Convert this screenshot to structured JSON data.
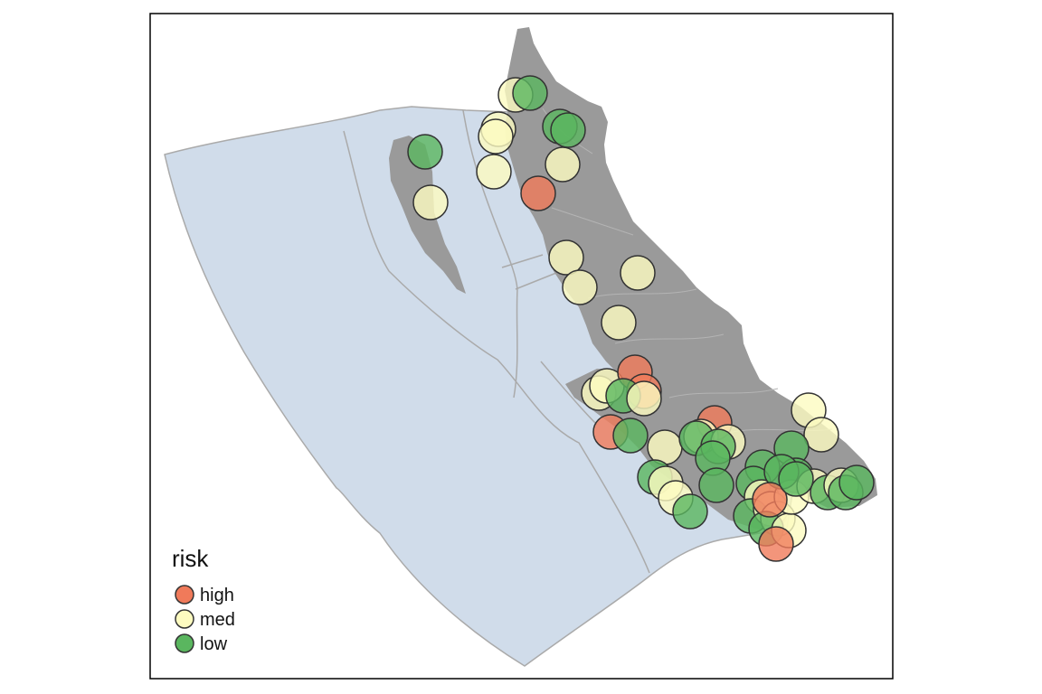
{
  "legend": {
    "title": "risk",
    "items": [
      {
        "label": "high",
        "color": "#f07a5a"
      },
      {
        "label": "med",
        "color": "#fdfbc0"
      },
      {
        "label": "low",
        "color": "#5ab65f"
      }
    ]
  },
  "colors": {
    "ocean": "#d0dcea",
    "land": "#9a9a9a",
    "boundary": "#aaaaaa",
    "marker_stroke": "#333333",
    "frame": "#000000"
  },
  "points": [
    {
      "risk": "med"
    },
    {
      "risk": "low"
    },
    {
      "risk": "med"
    },
    {
      "risk": "med"
    },
    {
      "risk": "low"
    },
    {
      "risk": "low"
    },
    {
      "risk": "med"
    },
    {
      "risk": "med"
    },
    {
      "risk": "low"
    },
    {
      "risk": "med"
    },
    {
      "risk": "high"
    },
    {
      "risk": "med"
    },
    {
      "risk": "med"
    },
    {
      "risk": "med"
    },
    {
      "risk": "med"
    },
    {
      "risk": "med"
    },
    {
      "risk": "med"
    },
    {
      "risk": "high"
    },
    {
      "risk": "high"
    },
    {
      "risk": "low"
    },
    {
      "risk": "med"
    },
    {
      "risk": "high"
    },
    {
      "risk": "low"
    },
    {
      "risk": "med"
    },
    {
      "risk": "high"
    },
    {
      "risk": "med"
    },
    {
      "risk": "low"
    },
    {
      "risk": "med"
    },
    {
      "risk": "low"
    },
    {
      "risk": "low"
    },
    {
      "risk": "low"
    },
    {
      "risk": "med"
    },
    {
      "risk": "med"
    },
    {
      "risk": "low"
    },
    {
      "risk": "low"
    },
    {
      "risk": "med"
    },
    {
      "risk": "med"
    },
    {
      "risk": "low"
    },
    {
      "risk": "low"
    },
    {
      "risk": "low"
    },
    {
      "risk": "med"
    },
    {
      "risk": "low"
    },
    {
      "risk": "med"
    },
    {
      "risk": "med"
    },
    {
      "risk": "low"
    },
    {
      "risk": "med"
    },
    {
      "risk": "low"
    },
    {
      "risk": "med"
    },
    {
      "risk": "low"
    },
    {
      "risk": "med"
    },
    {
      "risk": "low"
    },
    {
      "risk": "med"
    },
    {
      "risk": "high"
    },
    {
      "risk": "high"
    },
    {
      "risk": "low"
    },
    {
      "risk": "low"
    },
    {
      "risk": "low"
    }
  ]
}
